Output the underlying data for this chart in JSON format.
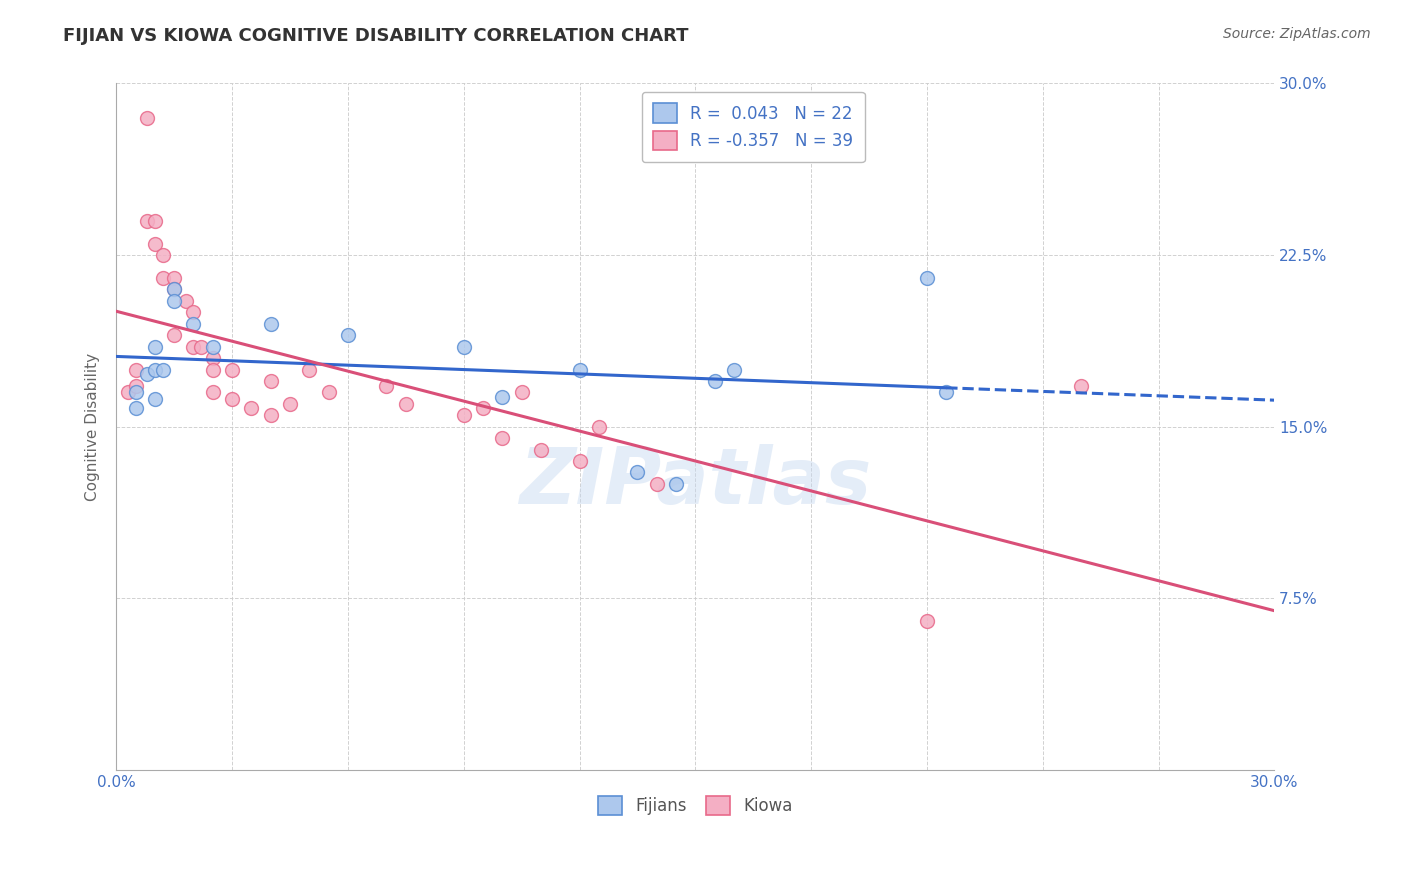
{
  "title": "FIJIAN VS KIOWA COGNITIVE DISABILITY CORRELATION CHART",
  "source": "Source: ZipAtlas.com",
  "ylabel": "Cognitive Disability",
  "xlim": [
    0.0,
    0.3
  ],
  "ylim": [
    0.0,
    0.3
  ],
  "ytick_values": [
    0.0,
    0.075,
    0.15,
    0.225,
    0.3
  ],
  "ytick_labels": [
    "",
    "7.5%",
    "15.0%",
    "22.5%",
    "30.0%"
  ],
  "xtick_values": [
    0.0,
    0.03,
    0.06,
    0.09,
    0.12,
    0.15,
    0.18,
    0.21,
    0.24,
    0.27,
    0.3
  ],
  "fijian_R": 0.043,
  "fijian_N": 22,
  "kiowa_R": -0.357,
  "kiowa_N": 39,
  "fijian_color": "#adc8ed",
  "kiowa_color": "#f4afc4",
  "fijian_edge_color": "#5b8fd4",
  "kiowa_edge_color": "#e8698a",
  "fijian_line_color": "#3266cc",
  "kiowa_line_color": "#d94f78",
  "fijian_x": [
    0.005,
    0.005,
    0.008,
    0.01,
    0.01,
    0.01,
    0.012,
    0.015,
    0.015,
    0.02,
    0.025,
    0.04,
    0.06,
    0.09,
    0.1,
    0.12,
    0.135,
    0.145,
    0.155,
    0.16,
    0.21,
    0.215
  ],
  "fijian_y": [
    0.165,
    0.158,
    0.173,
    0.185,
    0.175,
    0.162,
    0.175,
    0.21,
    0.205,
    0.195,
    0.185,
    0.195,
    0.19,
    0.185,
    0.163,
    0.175,
    0.13,
    0.125,
    0.17,
    0.175,
    0.215,
    0.165
  ],
  "kiowa_x": [
    0.003,
    0.005,
    0.005,
    0.008,
    0.008,
    0.01,
    0.01,
    0.012,
    0.012,
    0.015,
    0.015,
    0.015,
    0.018,
    0.02,
    0.02,
    0.022,
    0.025,
    0.025,
    0.025,
    0.03,
    0.03,
    0.035,
    0.04,
    0.04,
    0.045,
    0.05,
    0.055,
    0.07,
    0.075,
    0.09,
    0.095,
    0.1,
    0.105,
    0.11,
    0.12,
    0.125,
    0.14,
    0.21,
    0.25
  ],
  "kiowa_y": [
    0.165,
    0.175,
    0.168,
    0.285,
    0.24,
    0.24,
    0.23,
    0.225,
    0.215,
    0.215,
    0.21,
    0.19,
    0.205,
    0.2,
    0.185,
    0.185,
    0.18,
    0.175,
    0.165,
    0.175,
    0.162,
    0.158,
    0.17,
    0.155,
    0.16,
    0.175,
    0.165,
    0.168,
    0.16,
    0.155,
    0.158,
    0.145,
    0.165,
    0.14,
    0.135,
    0.15,
    0.125,
    0.065,
    0.168
  ],
  "watermark": "ZIPatlas",
  "background_color": "#ffffff",
  "grid_color": "#cccccc",
  "title_color": "#333333",
  "source_color": "#666666",
  "tick_color": "#4472c4",
  "ylabel_color": "#666666",
  "legend_text_color": "#4472c4",
  "bottom_legend_text_color": "#555555",
  "title_fontsize": 13,
  "source_fontsize": 10,
  "tick_fontsize": 11,
  "legend_fontsize": 12,
  "ylabel_fontsize": 11,
  "marker_size": 100,
  "line_width": 2.2
}
